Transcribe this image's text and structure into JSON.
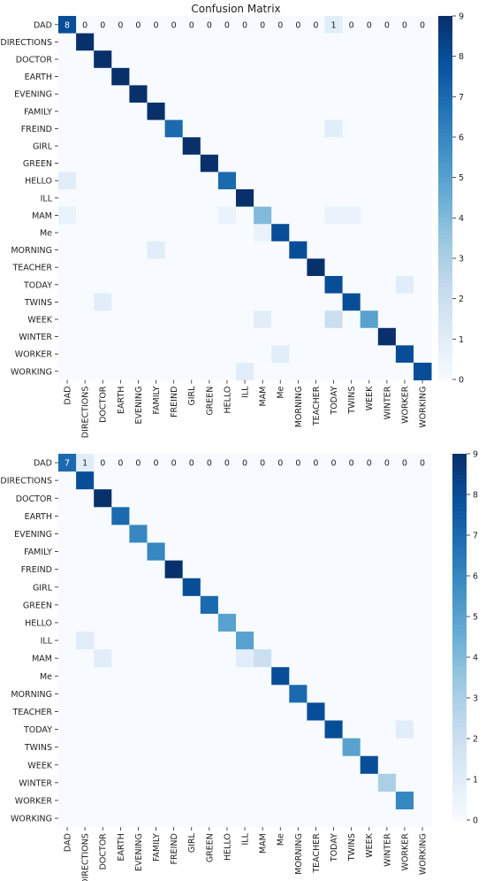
{
  "colors": {
    "low": "#f7fbff",
    "high": "#08306b",
    "text_dark": "#222222",
    "text_light": "#ffffff"
  },
  "chart_data": [
    {
      "type": "heatmap",
      "title": "Confusion Matrix",
      "labels": [
        "DAD",
        "DIRECTIONS",
        "DOCTOR",
        "EARTH",
        "EVENING",
        "FAMILY",
        "FREIND",
        "GIRL",
        "GREEN",
        "HELLO",
        "ILL",
        "MAM",
        "Me",
        "MORNING",
        "TEACHER",
        "TODAY",
        "TWINS",
        "WEEK",
        "WINTER",
        "WORKER",
        "WORKING"
      ],
      "vmin": 0,
      "vmax": 9,
      "colorbar_ticks": [
        0,
        1,
        2,
        3,
        4,
        5,
        6,
        7,
        8,
        9
      ],
      "annotated_rows": [
        0
      ],
      "matrix": [
        [
          8,
          0,
          0,
          0,
          0,
          0,
          0,
          0,
          0,
          0,
          0,
          0,
          0,
          0,
          0,
          1,
          0,
          0,
          0,
          0,
          0
        ],
        [
          0,
          9,
          0,
          0,
          0,
          0,
          0,
          0,
          0,
          0,
          0,
          0,
          0,
          0,
          0,
          0,
          0,
          0,
          0,
          0,
          0
        ],
        [
          0,
          0,
          9,
          0,
          0,
          0,
          0,
          0,
          0,
          0,
          0,
          0,
          0,
          0,
          0,
          0,
          0,
          0,
          0,
          0,
          0
        ],
        [
          0,
          0,
          0,
          9,
          0,
          0,
          0,
          0,
          0,
          0,
          0,
          0,
          0,
          0,
          0,
          0,
          0,
          0,
          0,
          0,
          0
        ],
        [
          0,
          0,
          0,
          0,
          9,
          0,
          0,
          0,
          0,
          0,
          0,
          0,
          0,
          0,
          0,
          0,
          0,
          0,
          0,
          0,
          0
        ],
        [
          0,
          0,
          0,
          0,
          0,
          9,
          0,
          0,
          0,
          0,
          0,
          0,
          0,
          0,
          0,
          0,
          0,
          0,
          0,
          0,
          0
        ],
        [
          0,
          0,
          0,
          0,
          0,
          0,
          7,
          0,
          0,
          0,
          0,
          0,
          0,
          0,
          0,
          1,
          0,
          0,
          0,
          0,
          0
        ],
        [
          0,
          0,
          0,
          0,
          0,
          0,
          0,
          9,
          0,
          0,
          0,
          0,
          0,
          0,
          0,
          0,
          0,
          0,
          0,
          0,
          0
        ],
        [
          0,
          0,
          0,
          0,
          0,
          0,
          0,
          0,
          9,
          0,
          0,
          0,
          0,
          0,
          0,
          0,
          0,
          0,
          0,
          0,
          0
        ],
        [
          1,
          0,
          0,
          0,
          0,
          0,
          0,
          0,
          0,
          7,
          0,
          0,
          0,
          0,
          0,
          0,
          0,
          0,
          0,
          0,
          0
        ],
        [
          0,
          0,
          0,
          0,
          0,
          0,
          0,
          0,
          0,
          0,
          9,
          0,
          0,
          0,
          0,
          0,
          0,
          0,
          0,
          0,
          0
        ],
        [
          0.6,
          0,
          0,
          0,
          0,
          0,
          0,
          0,
          0,
          0.6,
          0,
          4,
          0,
          0,
          0,
          0.6,
          0.6,
          0,
          0,
          0,
          0
        ],
        [
          0,
          0,
          0,
          0,
          0,
          0,
          0,
          0,
          0,
          0,
          0,
          0.6,
          8,
          0,
          0,
          0,
          0,
          0,
          0,
          0,
          0
        ],
        [
          0,
          0,
          0,
          0,
          0,
          1,
          0,
          0,
          0,
          0,
          0,
          0,
          0,
          8,
          0,
          0,
          0,
          0,
          0,
          0,
          0
        ],
        [
          0,
          0,
          0,
          0,
          0,
          0,
          0,
          0,
          0,
          0,
          0,
          0,
          0,
          0,
          9,
          0,
          0,
          0,
          0,
          0,
          0
        ],
        [
          0,
          0,
          0,
          0,
          0,
          0,
          0,
          0,
          0,
          0,
          0,
          0,
          0,
          0,
          0,
          8,
          0,
          0,
          0,
          1,
          0
        ],
        [
          0,
          0,
          1,
          0,
          0,
          0,
          0,
          0,
          0,
          0,
          0,
          0,
          0,
          0,
          0,
          0,
          8,
          0,
          0,
          0,
          0
        ],
        [
          0,
          0,
          0,
          0,
          0,
          0,
          0,
          0,
          0,
          0,
          0,
          1,
          0,
          0,
          0,
          2,
          0,
          5,
          0,
          0,
          0
        ],
        [
          0,
          0,
          0,
          0,
          0,
          0,
          0,
          0,
          0,
          0,
          0,
          0,
          0,
          0,
          0,
          0,
          0,
          0,
          9,
          0,
          0
        ],
        [
          0,
          0,
          0,
          0,
          0,
          0,
          0,
          0,
          0,
          0,
          0,
          0,
          1,
          0,
          0,
          0,
          0,
          0,
          0,
          8,
          0
        ],
        [
          0,
          0,
          0,
          0,
          0,
          0,
          0,
          0,
          0,
          0,
          1,
          0,
          0,
          0,
          0,
          0,
          0,
          0,
          0,
          0,
          8
        ]
      ]
    },
    {
      "type": "heatmap",
      "title": "",
      "labels": [
        "DAD",
        "DIRECTIONS",
        "DOCTOR",
        "EARTH",
        "EVENING",
        "FAMILY",
        "FREIND",
        "GIRL",
        "GREEN",
        "HELLO",
        "ILL",
        "MAM",
        "Me",
        "MORNING",
        "TEACHER",
        "TODAY",
        "TWINS",
        "WEEK",
        "WINTER",
        "WORKER",
        "WORKING"
      ],
      "vmin": 0,
      "vmax": 9,
      "colorbar_ticks": [
        0,
        1,
        2,
        3,
        4,
        5,
        6,
        7,
        8,
        9
      ],
      "annotated_rows": [
        0
      ],
      "matrix": [
        [
          7,
          1,
          0,
          0,
          0,
          0,
          0,
          0,
          0,
          0,
          0,
          0,
          0,
          0,
          0,
          0,
          0,
          0,
          0,
          0,
          0
        ],
        [
          0,
          8,
          0,
          0,
          0,
          0,
          0,
          0,
          0,
          0,
          0,
          0,
          0,
          0,
          0,
          0,
          0,
          0,
          0,
          0,
          0
        ],
        [
          0,
          0,
          9,
          0,
          0,
          0,
          0,
          0,
          0,
          0,
          0,
          0,
          0,
          0,
          0,
          0,
          0,
          0,
          0,
          0,
          0
        ],
        [
          0,
          0,
          0,
          7,
          0,
          0,
          0,
          0,
          0,
          0,
          0,
          0,
          0,
          0,
          0,
          0,
          0,
          0,
          0,
          0,
          0
        ],
        [
          0,
          0,
          0,
          0,
          6,
          0,
          0,
          0,
          0,
          0,
          0,
          0,
          0,
          0,
          0,
          0,
          0,
          0,
          0,
          0,
          0
        ],
        [
          0,
          0,
          0,
          0,
          0,
          6,
          0,
          0,
          0,
          0,
          0,
          0,
          0,
          0,
          0,
          0,
          0,
          0,
          0,
          0,
          0
        ],
        [
          0,
          0,
          0,
          0,
          0,
          0,
          9,
          0,
          0,
          0,
          0,
          0,
          0,
          0,
          0,
          0,
          0,
          0,
          0,
          0,
          0
        ],
        [
          0,
          0,
          0,
          0,
          0,
          0,
          0,
          8,
          0,
          0,
          0,
          0,
          0,
          0,
          0,
          0,
          0,
          0,
          0,
          0,
          0
        ],
        [
          0,
          0,
          0,
          0,
          0,
          0,
          0,
          0,
          7,
          0,
          0,
          0,
          0,
          0,
          0,
          0,
          0,
          0,
          0,
          0,
          0
        ],
        [
          0,
          0,
          0,
          0,
          0,
          0,
          0,
          0,
          0,
          5,
          0,
          0,
          0,
          0,
          0,
          0,
          0,
          0,
          0,
          0,
          0
        ],
        [
          0,
          1,
          0,
          0,
          0,
          0,
          0,
          0,
          0,
          0,
          5,
          0,
          0,
          0,
          0,
          0,
          0,
          0,
          0,
          0,
          0
        ],
        [
          0,
          0,
          1,
          0,
          0,
          0,
          0,
          0,
          0,
          0,
          1,
          2,
          0,
          0,
          0,
          0,
          0,
          0,
          0,
          0,
          0
        ],
        [
          0,
          0,
          0,
          0,
          0,
          0,
          0,
          0,
          0,
          0,
          0,
          0,
          8,
          0,
          0,
          0,
          0,
          0,
          0,
          0,
          0
        ],
        [
          0,
          0,
          0,
          0,
          0,
          0,
          0,
          0,
          0,
          0,
          0,
          0,
          0,
          7,
          0,
          0,
          0,
          0,
          0,
          0,
          0
        ],
        [
          0,
          0,
          0,
          0,
          0,
          0,
          0,
          0,
          0,
          0,
          0,
          0,
          0,
          0,
          8,
          0,
          0,
          0,
          0,
          0,
          0
        ],
        [
          0,
          0,
          0,
          0,
          0,
          0,
          0,
          0,
          0,
          0,
          0,
          0,
          0,
          0,
          0,
          8,
          0,
          0,
          0,
          1,
          0
        ],
        [
          0,
          0,
          0,
          0,
          0,
          0,
          0,
          0,
          0,
          0,
          0,
          0,
          0,
          0,
          0,
          0,
          5,
          0,
          0,
          0,
          0
        ],
        [
          0,
          0,
          0,
          0,
          0,
          0,
          0,
          0,
          0,
          0,
          0,
          0,
          0,
          0,
          0,
          0,
          0,
          8,
          0,
          0,
          0
        ],
        [
          0,
          0,
          0,
          0,
          0,
          0,
          0,
          0,
          0,
          0,
          0,
          0,
          0,
          0,
          0,
          0,
          0,
          0,
          3,
          0,
          0
        ],
        [
          0,
          0,
          0,
          0,
          0,
          0,
          0,
          0,
          0,
          0,
          0,
          0,
          0,
          0,
          0,
          0,
          0,
          0,
          0,
          6,
          0
        ],
        [
          0,
          0,
          0,
          0,
          0,
          0,
          0,
          0,
          0,
          0,
          0,
          0,
          0,
          0,
          0,
          0,
          0,
          0,
          0,
          0,
          0
        ]
      ]
    }
  ]
}
